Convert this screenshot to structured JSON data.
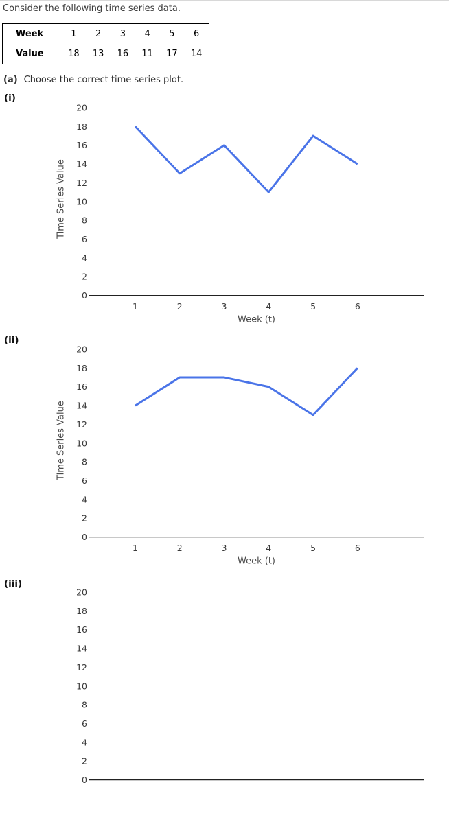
{
  "page": {
    "intro": "Consider the following time series data.",
    "part_a": {
      "label": "(a)",
      "text": "Choose the correct time series plot."
    }
  },
  "table": {
    "rows": [
      {
        "header": "Week",
        "cells": [
          "1",
          "2",
          "3",
          "4",
          "5",
          "6"
        ]
      },
      {
        "header": "Value",
        "cells": [
          "18",
          "13",
          "16",
          "11",
          "17",
          "14"
        ]
      }
    ]
  },
  "colors": {
    "line": "#4a74e8",
    "axis": "#222222",
    "tick_text": "#3a3a3a",
    "axis_title_text": "#4a4a4a"
  },
  "chart_data": [
    {
      "type": "line",
      "label": "(i)",
      "x": [
        1,
        2,
        3,
        4,
        5,
        6
      ],
      "values": [
        18,
        13,
        16,
        11,
        17,
        14
      ],
      "xlabel": "Week (t)",
      "ylabel": "Time Series Value",
      "ylim": [
        0,
        20
      ],
      "ytick_step": 2,
      "grid": false,
      "legend": "none"
    },
    {
      "type": "line",
      "label": "(ii)",
      "x": [
        1,
        2,
        3,
        4,
        5,
        6
      ],
      "values": [
        14,
        17,
        17,
        16,
        13,
        18
      ],
      "xlabel": "Week (t)",
      "ylabel": "Time Series Value",
      "ylim": [
        0,
        20
      ],
      "ytick_step": 2,
      "grid": false,
      "legend": "none"
    },
    {
      "type": "line",
      "label": "(iii)",
      "x": [],
      "values": [],
      "ylim": [
        0,
        20
      ],
      "ytick_step": 2,
      "grid": false,
      "legend": "none",
      "partial": true
    }
  ]
}
